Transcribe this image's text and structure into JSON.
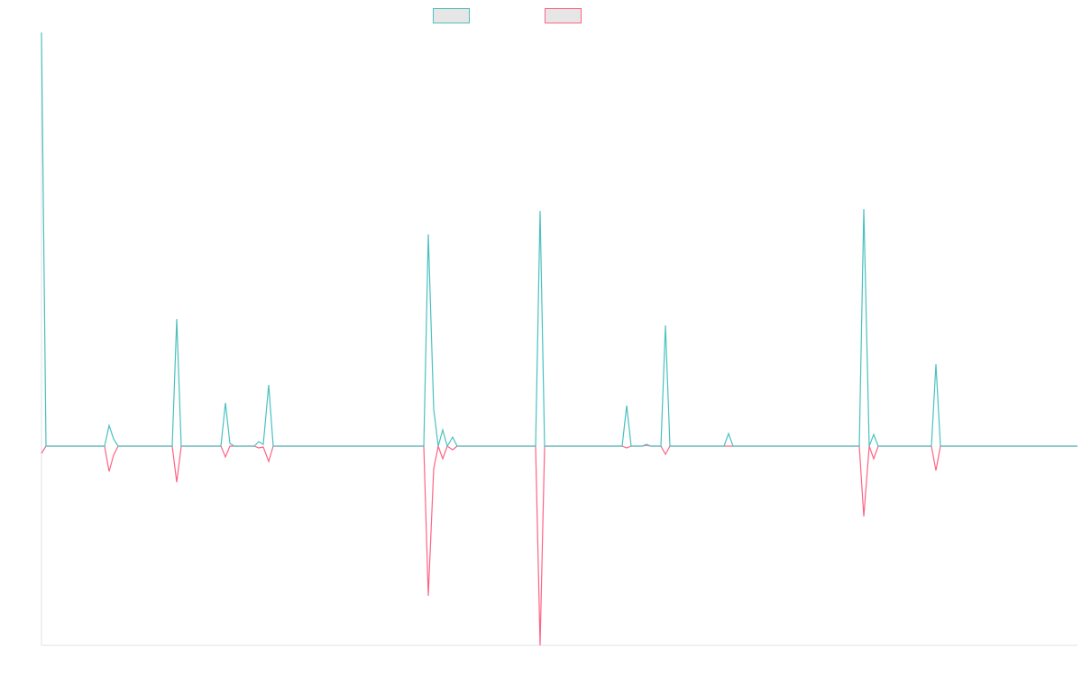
{
  "chart_data": {
    "type": "line",
    "x": [
      46,
      51,
      116,
      121,
      126,
      131,
      191,
      196,
      201,
      245,
      250,
      255,
      260,
      282,
      287,
      292,
      298,
      303,
      470,
      475,
      481,
      486,
      491,
      496,
      502,
      507,
      594,
      599,
      604,
      690,
      695,
      700,
      712,
      717,
      722,
      733,
      738,
      743,
      803,
      808,
      813,
      953,
      958,
      964,
      969,
      974,
      1033,
      1038,
      1043,
      1195
    ],
    "xlim": [
      46,
      1195
    ],
    "ylim": [
      -221,
      459
    ],
    "legend": "top",
    "series": [
      {
        "color": "#ff6384",
        "values": [
          -8,
          0,
          0,
          -28,
          -10,
          0,
          0,
          -40,
          0,
          0,
          -12,
          0,
          0,
          0,
          -2,
          -1,
          -17,
          0,
          0,
          -166,
          -25,
          0,
          -14,
          0,
          -4,
          0,
          0,
          -221,
          0,
          0,
          -2,
          0,
          0,
          1,
          0,
          0,
          -9,
          0,
          0,
          0,
          0,
          0,
          -78,
          0,
          -14,
          0,
          0,
          -27,
          0,
          0
        ]
      },
      {
        "color": "#4bc0c0",
        "values": [
          459,
          0,
          0,
          23,
          8,
          0,
          0,
          141,
          0,
          0,
          48,
          3,
          0,
          0,
          5,
          2,
          68,
          0,
          0,
          235,
          41,
          0,
          18,
          0,
          10,
          0,
          0,
          261,
          0,
          0,
          45,
          0,
          0,
          2,
          0,
          0,
          134,
          0,
          0,
          14,
          0,
          0,
          263,
          0,
          13,
          0,
          0,
          91,
          0,
          0
        ]
      }
    ]
  }
}
